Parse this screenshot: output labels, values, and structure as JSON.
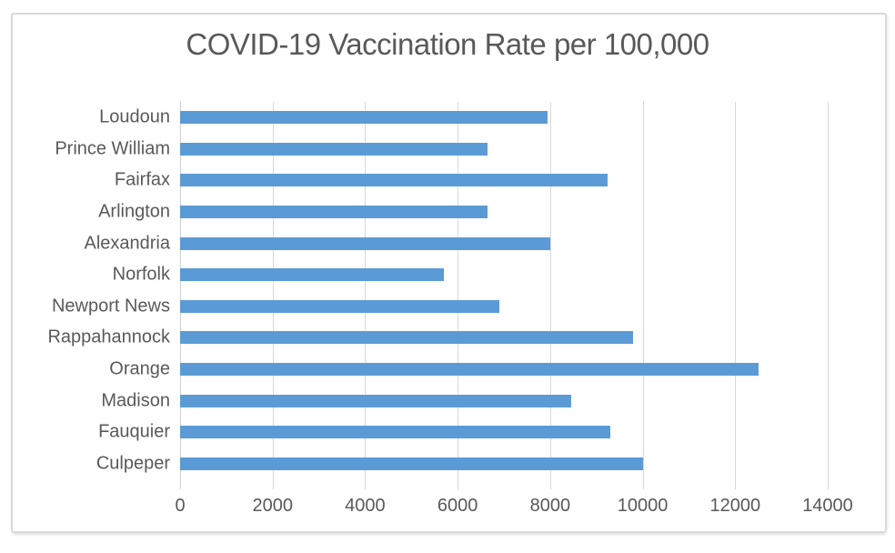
{
  "chart_data": {
    "type": "bar",
    "orientation": "horizontal",
    "title": "COVID-19 Vaccination Rate per 100,000",
    "categories": [
      "Loudoun",
      "Prince William",
      "Fairfax",
      "Arlington",
      "Alexandria",
      "Norfolk",
      "Newport News",
      "Rappahannock",
      "Orange",
      "Madison",
      "Fauquier",
      "Culpeper"
    ],
    "values": [
      7950,
      6650,
      9250,
      6650,
      8000,
      5700,
      6900,
      9800,
      12500,
      8450,
      9300,
      10000
    ],
    "xlabel": "",
    "ylabel": "",
    "xlim": [
      0,
      14000
    ],
    "xticks": [
      0,
      2000,
      4000,
      6000,
      8000,
      10000,
      12000,
      14000
    ],
    "grid": true,
    "legend": false,
    "colors": {
      "bar": "#5B9BD5",
      "gridline": "#D9D9D9",
      "text": "#595959",
      "frame_border": "#D9D9D9",
      "background": "#FFFFFF"
    }
  }
}
